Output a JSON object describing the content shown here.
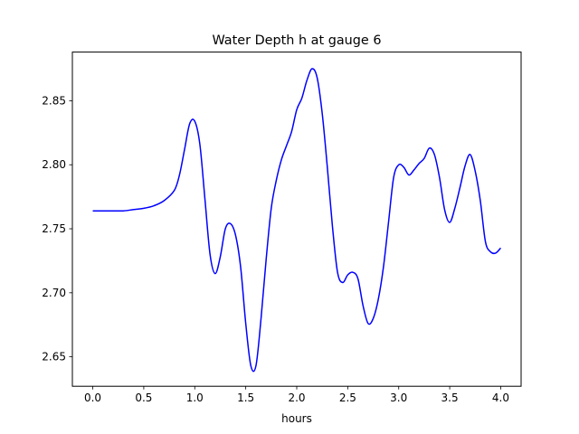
{
  "chart_data": {
    "type": "line",
    "title": "Water Depth h at gauge 6",
    "xlabel": "hours",
    "ylabel": "",
    "xlim": [
      -0.2,
      4.2
    ],
    "ylim": [
      2.627,
      2.888
    ],
    "xticks": [
      0.0,
      0.5,
      1.0,
      1.5,
      2.0,
      2.5,
      3.0,
      3.5,
      4.0
    ],
    "xtick_labels": [
      "0.0",
      "0.5",
      "1.0",
      "1.5",
      "2.0",
      "2.5",
      "3.0",
      "3.5",
      "4.0"
    ],
    "yticks": [
      2.65,
      2.7,
      2.75,
      2.8,
      2.85
    ],
    "ytick_labels": [
      "2.65",
      "2.70",
      "2.75",
      "2.80",
      "2.85"
    ],
    "grid": false,
    "series": [
      {
        "color": "#0000ff",
        "x": [
          0.0,
          0.1,
          0.2,
          0.3,
          0.4,
          0.5,
          0.6,
          0.7,
          0.8,
          0.85,
          0.9,
          0.95,
          1.0,
          1.05,
          1.1,
          1.15,
          1.2,
          1.25,
          1.3,
          1.35,
          1.4,
          1.45,
          1.5,
          1.55,
          1.6,
          1.65,
          1.7,
          1.75,
          1.8,
          1.85,
          1.9,
          1.95,
          2.0,
          2.05,
          2.1,
          2.15,
          2.2,
          2.25,
          2.3,
          2.35,
          2.4,
          2.45,
          2.5,
          2.55,
          2.6,
          2.65,
          2.7,
          2.75,
          2.8,
          2.85,
          2.9,
          2.95,
          3.0,
          3.05,
          3.1,
          3.15,
          3.2,
          3.25,
          3.3,
          3.35,
          3.4,
          3.45,
          3.5,
          3.55,
          3.6,
          3.65,
          3.7,
          3.75,
          3.8,
          3.85,
          3.9,
          3.95,
          4.0
        ],
        "y": [
          2.764,
          2.764,
          2.764,
          2.764,
          2.765,
          2.766,
          2.768,
          2.772,
          2.78,
          2.792,
          2.812,
          2.832,
          2.834,
          2.816,
          2.773,
          2.73,
          2.715,
          2.728,
          2.75,
          2.754,
          2.745,
          2.72,
          2.676,
          2.643,
          2.643,
          2.68,
          2.726,
          2.766,
          2.788,
          2.804,
          2.815,
          2.826,
          2.843,
          2.852,
          2.866,
          2.875,
          2.868,
          2.84,
          2.798,
          2.752,
          2.716,
          2.708,
          2.714,
          2.716,
          2.711,
          2.69,
          2.676,
          2.68,
          2.695,
          2.72,
          2.755,
          2.79,
          2.8,
          2.798,
          2.792,
          2.796,
          2.801,
          2.805,
          2.813,
          2.808,
          2.79,
          2.765,
          2.755,
          2.766,
          2.782,
          2.799,
          2.808,
          2.795,
          2.772,
          2.74,
          2.732,
          2.731,
          2.735
        ]
      }
    ]
  }
}
